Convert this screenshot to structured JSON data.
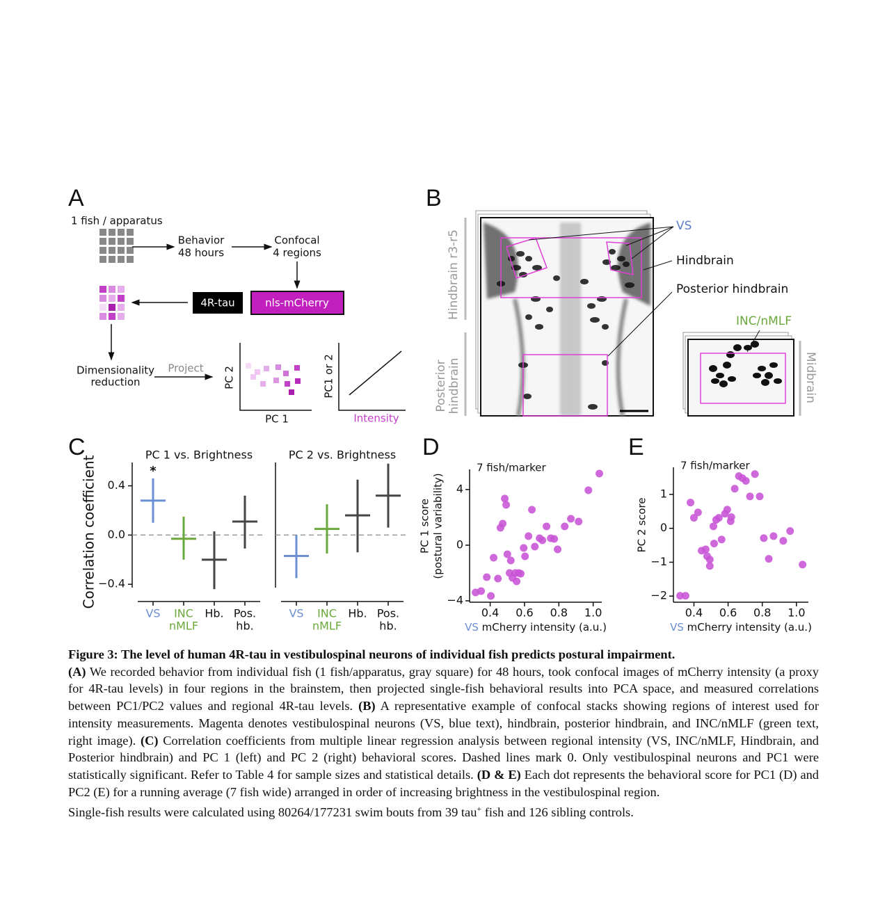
{
  "panel_letters": [
    "A",
    "B",
    "C",
    "D",
    "E"
  ],
  "panel_a": {
    "apparatus": "1 fish / apparatus",
    "behavior": [
      "Behavior",
      "48 hours"
    ],
    "confocal": [
      "Confocal",
      "4 regions"
    ],
    "tau_box": "4R-tau",
    "mcherry_box": "nls-mCherry",
    "reduction": [
      "Dimensionality",
      "reduction"
    ],
    "project": "Project",
    "pc2_axis": "PC 2",
    "pc1_axis": "PC 1",
    "pc_or_axis": "PC1 or 2",
    "intensity_axis": "Intensity"
  },
  "panel_b": {
    "vs": "VS",
    "hindbrain": "Hindbrain",
    "posterior": "Posterior hindbrain",
    "inc": "INC/nMLF",
    "side_hindbrain": "Hindbrain r3-r5",
    "side_posterior": [
      "Posterior",
      "hindbrain"
    ],
    "side_midbrain": "Midbrain"
  },
  "chart_data": [
    {
      "type": "errorbar",
      "title": "PC 1 vs. Brightness",
      "ylabel": "Correlation coefficient",
      "categories": [
        [
          "VS"
        ],
        [
          "INC",
          "nMLF"
        ],
        [
          "Hb."
        ],
        [
          "Pos.",
          "hb."
        ]
      ],
      "colors": [
        "#6b8fd2",
        "#6aa83c",
        "#454545",
        "#454545"
      ],
      "values": [
        0.28,
        -0.03,
        -0.2,
        0.11
      ],
      "lower": [
        0.1,
        -0.2,
        -0.44,
        -0.11
      ],
      "upper": [
        0.46,
        0.15,
        0.03,
        0.32
      ],
      "ylim": [
        -0.54,
        0.59
      ],
      "yticks": [
        {
          "value": 0.4,
          "label": "0.4"
        },
        {
          "value": 0,
          "label": "0.0"
        },
        {
          "value": -0.4,
          "label": "−0.4"
        }
      ],
      "reference_line": 0,
      "annotations": [
        {
          "text": "*",
          "category": 0
        }
      ]
    },
    {
      "type": "errorbar",
      "title": "PC 2 vs. Brightness",
      "categories": [
        [
          "VS"
        ],
        [
          "INC",
          "nMLF"
        ],
        [
          "Hb."
        ],
        [
          "Pos.",
          "hb."
        ]
      ],
      "colors": [
        "#6b8fd2",
        "#6aa83c",
        "#454545",
        "#454545"
      ],
      "values": [
        -0.17,
        0.05,
        0.16,
        0.32
      ],
      "lower": [
        -0.35,
        -0.15,
        -0.14,
        0.06
      ],
      "upper": [
        0.0,
        0.25,
        0.45,
        0.58
      ],
      "ylim": [
        -0.54,
        0.59
      ],
      "reference_line": 0
    },
    {
      "type": "scatter",
      "annotation": "7 fish/marker",
      "color": "#c853d6",
      "xlabel": [
        {
          "text": "VS",
          "color": "#6b8fd2"
        },
        {
          "text": " mCherry intensity (a.u.)"
        }
      ],
      "ylabel": [
        "PC 1 score",
        "(postural variability)"
      ],
      "x": [
        0.315,
        0.347,
        0.38,
        0.404,
        0.42,
        0.445,
        0.46,
        0.473,
        0.485,
        0.493,
        0.5,
        0.513,
        0.52,
        0.53,
        0.546,
        0.554,
        0.566,
        0.578,
        0.595,
        0.603,
        0.623,
        0.643,
        0.66,
        0.688,
        0.704,
        0.728,
        0.753,
        0.773,
        0.793,
        0.834,
        0.87,
        0.915,
        0.972,
        1.036
      ],
      "values": [
        -3.4,
        -3.3,
        -2.3,
        -3.65,
        -0.9,
        -2.4,
        1.25,
        1.55,
        3.35,
        2.9,
        -0.65,
        -2.0,
        -1.1,
        -2.35,
        -2.0,
        -2.6,
        -2.0,
        -2.05,
        -0.2,
        -0.8,
        0.65,
        2.55,
        -0.1,
        0.5,
        0.35,
        1.35,
        0.5,
        0.45,
        -0.3,
        1.35,
        1.9,
        1.7,
        3.95,
        5.15
      ],
      "xlim": [
        0.28,
        1.05
      ],
      "ylim": [
        -4.1,
        5.45
      ],
      "xticks": [
        0.4,
        0.6,
        0.8,
        {
          "value": 1.0,
          "label": "1.0"
        }
      ],
      "yticks": [
        {
          "value": -4,
          "label": "−4"
        },
        0,
        4
      ]
    },
    {
      "type": "scatter",
      "annotation": "7 fish/marker",
      "color": "#c853d6",
      "xlabel": [
        {
          "text": "VS",
          "color": "#6b8fd2"
        },
        {
          "text": " mCherry intensity (a.u.)"
        }
      ],
      "ylabel": [
        "PC 2 score"
      ],
      "x": [
        0.319,
        0.351,
        0.38,
        0.4,
        0.424,
        0.445,
        0.469,
        0.477,
        0.493,
        0.493,
        0.514,
        0.518,
        0.53,
        0.546,
        0.562,
        0.582,
        0.595,
        0.615,
        0.619,
        0.639,
        0.663,
        0.684,
        0.704,
        0.728,
        0.757,
        0.785,
        0.809,
        0.838,
        0.866,
        0.923,
        0.963,
        1.036
      ],
      "values": [
        -1.99,
        -1.99,
        0.76,
        0.31,
        0.47,
        -0.66,
        -0.62,
        -0.82,
        -1.11,
        -0.92,
        0.06,
        -0.45,
        0.25,
        0.31,
        -0.33,
        0.43,
        0.55,
        0.21,
        0.33,
        1.17,
        1.54,
        1.48,
        1.4,
        0.94,
        1.6,
        0.94,
        -0.29,
        -0.9,
        -0.23,
        -0.37,
        -0.08,
        -1.07
      ],
      "xlim": [
        0.28,
        1.07
      ],
      "ylim": [
        -2.18,
        1.8
      ],
      "xticks": [
        0.4,
        0.6,
        0.8,
        {
          "value": 1.0,
          "label": "1.0"
        }
      ],
      "yticks": [
        {
          "value": -2,
          "label": "−2"
        },
        {
          "value": -1,
          "label": "−1"
        },
        0,
        1
      ]
    }
  ],
  "caption": {
    "title": "Figure 3: The level of human 4R-tau in vestibulospinal neurons of individual fish predicts postural impairment.",
    "paragraphs": [
      [
        {
          "text": "(A)",
          "style": "bold"
        },
        {
          "text": " We recorded behavior from individual fish (1 fish/apparatus, gray square) for 48 hours, took confocal images of mCherry intensity (a proxy for 4R-tau levels) in four regions in the brainstem, then projected single-fish behavioral results into PCA space, and measured correlations between PC1/PC2 values and regional 4R-tau levels. "
        },
        {
          "text": "(B)",
          "style": "bold"
        },
        {
          "text": " A representative example of confocal stacks showing regions of interest used for intensity measurements. Magenta denotes vestibulospinal neurons (VS, blue text), hindbrain, posterior hindbrain, and INC/nMLF (green text, right image). "
        },
        {
          "text": "(C)",
          "style": "bold"
        },
        {
          "text": " Correlation coefficients from multiple linear regression analysis between regional intensity (VS, INC/nMLF, Hindbrain, and Posterior hindbrain) and PC 1 (left) and PC 2 (right) behavioral scores. Dashed lines mark 0. Only vestibulospinal neurons and PC1 were statistically significant. Refer to Table 4 for sample sizes and statistical details. "
        },
        {
          "text": "(D & E)",
          "style": "bold"
        },
        {
          "text": " Each dot represents the behavioral score for PC1 (D) and PC2 (E) for a running average (7 fish wide) arranged in order of increasing brightness in the vestibulospinal region."
        }
      ],
      [
        {
          "text": "Single-fish results were calculated using 80264/177231 swim bouts from 39 tau"
        },
        {
          "text": "+",
          "style": "sup"
        },
        {
          "text": " fish and 126 sibling controls."
        }
      ]
    ]
  }
}
